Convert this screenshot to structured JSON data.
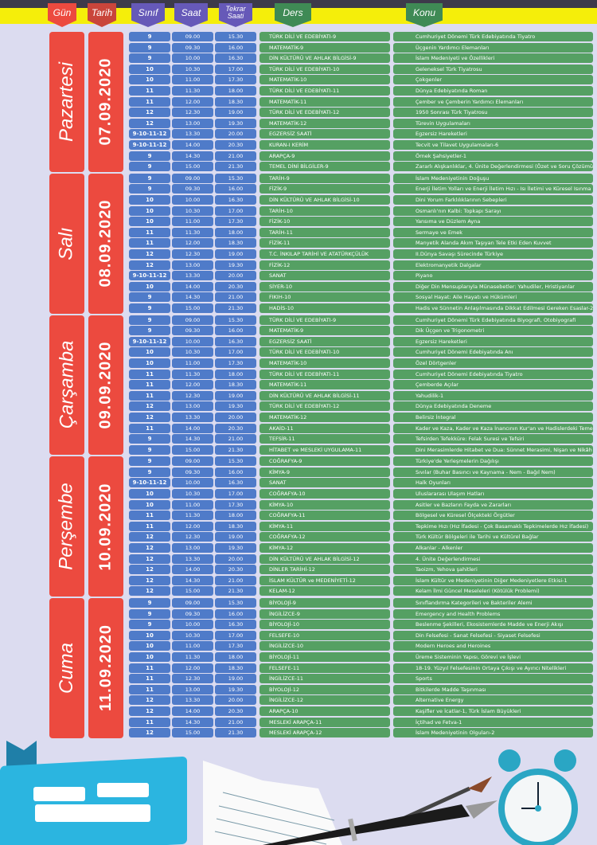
{
  "headers": {
    "gun": "Gün",
    "tarih": "Tarih",
    "sinif": "Sınıf",
    "saat": "Saat",
    "tekrar": "Tekrar Saati",
    "ders": "Ders",
    "konu": "Konu"
  },
  "colors": {
    "day": "#ec4a3f",
    "date": "#c9453b",
    "header_purple": "#6659b8",
    "header_green": "#3f8a55",
    "cell_blue": "#4f7bc9",
    "cell_green": "#55a063",
    "banner": "#f5ee0a"
  },
  "days": [
    {
      "name": "Pazartesi",
      "date": "07.09.2020",
      "rows": [
        [
          "9",
          "09.00",
          "15.30",
          "TÜRK DİLİ VE EDEBİYATI-9",
          "Cumhuriyet Dönemi Türk Edebiyatında Tiyatro"
        ],
        [
          "9",
          "09.30",
          "16.00",
          "MATEMATİK-9",
          "Üçgenin Yardımcı Elemanları"
        ],
        [
          "9",
          "10.00",
          "16.30",
          "DİN KÜLTÜRÜ VE AHLAK BİLGİSİ-9",
          "İslam Medeniyeti ve Özellikleri"
        ],
        [
          "10",
          "10.30",
          "17.00",
          "TÜRK DİLİ VE EDEBİYATI-10",
          "Geleneksel Türk Tiyatrosu"
        ],
        [
          "10",
          "11.00",
          "17.30",
          "MATEMATİK-10",
          "Çokgenler"
        ],
        [
          "11",
          "11.30",
          "18.00",
          "TÜRK DİLİ VE EDEBİYATI-11",
          "Dünya Edebiyatında Roman"
        ],
        [
          "11",
          "12.00",
          "18.30",
          "MATEMATİK-11",
          "Çember ve Çemberin Yardımcı Elemanları"
        ],
        [
          "12",
          "12.30",
          "19.00",
          "TÜRK DİLİ VE EDEBİYATI-12",
          "1950 Sonrası Türk Tiyatrosu"
        ],
        [
          "12",
          "13.00",
          "19.30",
          "MATEMATİK-12",
          "Türevin Uygulamaları"
        ],
        [
          "9-10-11-12",
          "13.30",
          "20.00",
          "EGZERSİZ SAATİ",
          "Egzersiz Hareketleri"
        ],
        [
          "9-10-11-12",
          "14.00",
          "20.30",
          "KURAN-I KERİM",
          "Tecvit ve Tilavet Uygulamaları-6"
        ],
        [
          "9",
          "14.30",
          "21.00",
          "ARAPÇA-9",
          "Örnek Şahsiyetler-1"
        ],
        [
          "9",
          "15.00",
          "21.30",
          "TEMEL DİNİ BİLGİLER-9",
          "Zararlı Alışkanlıklar, 4. Ünite Değerlendirmesi (Özet ve Soru Çözümü)"
        ]
      ]
    },
    {
      "name": "Salı",
      "date": "08.09.2020",
      "rows": [
        [
          "9",
          "09.00",
          "15.30",
          "TARİH-9",
          "İslam Medeniyetinin Doğuşu"
        ],
        [
          "9",
          "09.30",
          "16.00",
          "FİZİK-9",
          "Enerji İletim Yolları ve Enerji İletim Hızı - Isı İletimi ve Küresel Isınma"
        ],
        [
          "10",
          "10.00",
          "16.30",
          "DİN KÜLTÜRÜ VE AHLAK BİLGİSİ-10",
          "Dini Yorum Farklılıklarının Sebepleri"
        ],
        [
          "10",
          "10.30",
          "17.00",
          "TARİH-10",
          "Osmanlı'nın Kalbi: Topkapı Sarayı"
        ],
        [
          "10",
          "11.00",
          "17.30",
          "FİZİK-10",
          "Yansıma ve Düzlem Ayna"
        ],
        [
          "11",
          "11.30",
          "18.00",
          "TARİH-11",
          "Sermaye ve Emek"
        ],
        [
          "11",
          "12.00",
          "18.30",
          "FİZİK-11",
          "Manyetik Alanda Akım Taşıyan Tele Etki Eden Kuvvet"
        ],
        [
          "12",
          "12.30",
          "19.00",
          "T.C. İNKILAP TARİHİ VE ATATÜRKÇÜLÜK",
          "II.Dünya Savaşı Sürecinde Türkiye"
        ],
        [
          "12",
          "13.00",
          "19.30",
          "FİZİK-12",
          "Elektromanyetik Dalgalar"
        ],
        [
          "9-10-11-12",
          "13.30",
          "20.00",
          "SANAT",
          "Piyano"
        ],
        [
          "10",
          "14.00",
          "20.30",
          "SİYER-10",
          "Diğer Din Mensuplarıyla Münasebetler: Yahudiler, Hristiyanlar"
        ],
        [
          "9",
          "14.30",
          "21.00",
          "FIKIH-10",
          "Sosyal Hayat: Aile Hayatı ve Hükümleri"
        ],
        [
          "9",
          "15.00",
          "21.30",
          "HADİS-10",
          "Hadis ve Sünnetin Anlaşılmasında Dikkat Edilmesi Gereken Esaslar-2"
        ]
      ]
    },
    {
      "name": "Çarşamba",
      "date": "09.09.2020",
      "rows": [
        [
          "9",
          "09.00",
          "15.30",
          "TÜRK DİLİ VE EDEBİYATI-9",
          "Cumhuriyet Dönemi Türk Edebiyatında Biyografi, Otobiyografi"
        ],
        [
          "9",
          "09.30",
          "16.00",
          "MATEMATİK-9",
          "Dik Üçgen ve Trigonometri"
        ],
        [
          "9-10-11-12",
          "10.00",
          "16.30",
          "EGZERSİZ SAATİ",
          "Egzersiz Hareketleri"
        ],
        [
          "10",
          "10.30",
          "17.00",
          "TÜRK DİLİ VE EDEBİYATI-10",
          "Cumhuriyet Dönemi Edebiyatında Anı"
        ],
        [
          "10",
          "11.00",
          "17.30",
          "MATEMATİK-10",
          "Özel Dörtgenler"
        ],
        [
          "11",
          "11.30",
          "18.00",
          "TÜRK DİLİ VE EDEBİYATI-11",
          "Cumhuriyet Dönemi Edebiyatında Tiyatro"
        ],
        [
          "11",
          "12.00",
          "18.30",
          "MATEMATİK-11",
          "Çemberde Açılar"
        ],
        [
          "11",
          "12.30",
          "19.00",
          "DİN KÜLTÜRÜ VE AHLAK BİLGİSİ-11",
          "Yahudilik-1"
        ],
        [
          "12",
          "13.00",
          "19.30",
          "TÜRK DİLİ VE EDEBİYATI-12",
          "Dünya Edebiyatında Deneme"
        ],
        [
          "12",
          "13.30",
          "20.00",
          "MATEMATİK-12",
          "Belirsiz İntegral"
        ],
        [
          "11",
          "14.00",
          "20.30",
          "AKAİD-11",
          "Kader ve Kaza, Kader ve Kaza İnancının Kur'an ve Hadislerdeki Temelleri"
        ],
        [
          "9",
          "14.30",
          "21.00",
          "TEFSİR-11",
          "Tefsirden Tefekküre: Felak Suresi ve Tefsiri"
        ],
        [
          "9",
          "15.00",
          "21.30",
          "HİTABET ve MESLEKİ UYGULAMA-11",
          "Dini Merasimlerde Hitabet ve Dua: Sünnet Merasimi, Nişan ve Nikâh Merasimi"
        ]
      ]
    },
    {
      "name": "Perşembe",
      "date": "10.09.2020",
      "rows": [
        [
          "9",
          "09.00",
          "15.30",
          "COĞRAFYA-9",
          "Türkiye'de Yerleşmelerin Dağılışı"
        ],
        [
          "9",
          "09.30",
          "16.00",
          "KİMYA-9",
          "Sıvılar (Buhar Basıncı ve Kaynama - Nem - Bağıl Nem)"
        ],
        [
          "9-10-11-12",
          "10.00",
          "16.30",
          "SANAT",
          "Halk Oyunları"
        ],
        [
          "10",
          "10.30",
          "17.00",
          "COĞRAFYA-10",
          "Uluslararası Ulaşım Hatları"
        ],
        [
          "10",
          "11.00",
          "17.30",
          "KİMYA-10",
          "Asitler ve Bazların Fayda ve Zararları"
        ],
        [
          "11",
          "11.30",
          "18.00",
          "COĞRAFYA-11",
          "Bölgesel ve Küresel Ölçekteki Örgütler"
        ],
        [
          "11",
          "12.00",
          "18.30",
          "KİMYA-11",
          "Tepkime Hızı (Hız İfadesi - Çok Basamaklı Tepkimelerde Hız İfadesi)"
        ],
        [
          "12",
          "12.30",
          "19.00",
          "COĞRAFYA-12",
          "Türk Kültür Bölgeleri ile Tarihi ve Kültürel Bağlar"
        ],
        [
          "12",
          "13.00",
          "19.30",
          "KİMYA-12",
          "Alkanlar - Alkenler"
        ],
        [
          "12",
          "13.30",
          "20.00",
          "DİN KÜLTÜRÜ VE AHLAK BİLGİSİ-12",
          "4. Ünite Değerlendirmesi"
        ],
        [
          "12",
          "14.00",
          "20.30",
          "DİNLER TARİHİ-12",
          "Taoizm, Yehova şahitleri"
        ],
        [
          "12",
          "14.30",
          "21.00",
          "İSLAM KÜLTÜR ve MEDENİYETİ-12",
          "İslam Kültür ve Medeniyetinin Diğer Medeniyetlere Etkisi-1"
        ],
        [
          "12",
          "15.00",
          "21.30",
          "KELAM-12",
          "Kelam İlmi Güncel Meseleleri (Kötülük Problemi)"
        ]
      ]
    },
    {
      "name": "Cuma",
      "date": "11.09.2020",
      "rows": [
        [
          "9",
          "09.00",
          "15.30",
          "BİYOLOJİ-9",
          "Sınıflandırma Kategorileri ve Bakteriler Alemi"
        ],
        [
          "9",
          "09.30",
          "16.00",
          "İNGİLİZCE-9",
          "Emergency and Health Problems"
        ],
        [
          "9",
          "10.00",
          "16.30",
          "BİYOLOJİ-10",
          "Beslenme Şekilleri, Ekosistemlerde Madde ve Enerji Akışı"
        ],
        [
          "10",
          "10.30",
          "17.00",
          "FELSEFE-10",
          "Din Felsefesi - Sanat Felsefesi - Siyaset Felsefesi"
        ],
        [
          "10",
          "11.00",
          "17.30",
          "İNGİLİZCE-10",
          "Modern Heroes and Heroines"
        ],
        [
          "10",
          "11.30",
          "18.00",
          "BİYOLOJİ-11",
          "Üreme Sisteminin Yapısı, Görevi ve İşlevi"
        ],
        [
          "11",
          "12.00",
          "18.30",
          "FELSEFE-11",
          "18-19. Yüzyıl Felsefesinin Ortaya Çıkışı ve Ayırıcı Nitelikleri"
        ],
        [
          "11",
          "12.30",
          "19.00",
          "İNGİLİZCE-11",
          "Sports"
        ],
        [
          "11",
          "13.00",
          "19.30",
          "BİYOLOJİ-12",
          "Bitkilerde Madde Taşınması"
        ],
        [
          "12",
          "13.30",
          "20.00",
          "İNGİLİZCE-12",
          "Alternative Energy"
        ],
        [
          "12",
          "14.00",
          "20.30",
          "ARAPÇA-10",
          "Kaşifler ve İcatlar-1, Türk İslam Büyükleri"
        ],
        [
          "11",
          "14.30",
          "21.00",
          "MESLEKİ ARAPÇA-11",
          "İçtihad ve Fetva-1"
        ],
        [
          "12",
          "15.00",
          "21.30",
          "MESLEKİ ARAPÇA-12",
          "İslam Medeniyetinin Olguları-2"
        ]
      ]
    }
  ],
  "decor_icons": [
    "notebook-icon",
    "notepaper-icon",
    "fountain-pen-icon",
    "paintbrush-icon",
    "alarm-clock-icon"
  ]
}
